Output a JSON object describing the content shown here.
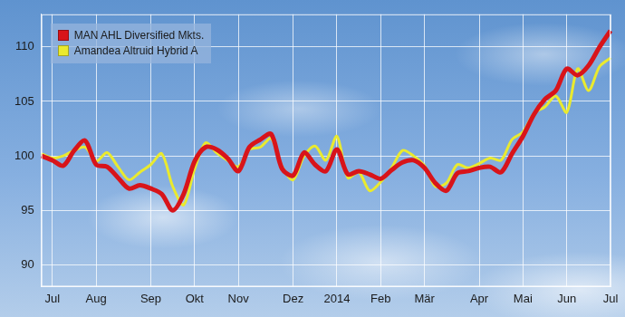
{
  "chart_data": {
    "type": "line",
    "categories": [
      null,
      "Jul",
      null,
      null,
      null,
      "Aug",
      null,
      null,
      null,
      null,
      "Sep",
      null,
      null,
      null,
      "Okt",
      null,
      null,
      null,
      "Nov",
      null,
      null,
      null,
      null,
      "Dez",
      null,
      null,
      null,
      "2014",
      null,
      null,
      null,
      "Feb",
      null,
      null,
      null,
      "Mär",
      null,
      null,
      null,
      null,
      "Apr",
      null,
      null,
      null,
      "Mai",
      null,
      null,
      null,
      "Jun",
      null,
      null,
      null,
      "Jul"
    ],
    "series": [
      {
        "name": "MAN AHL Diversified Mkts.",
        "color": "#d8141a",
        "values": [
          100.0,
          99.6,
          99.1,
          100.5,
          101.4,
          99.2,
          99.0,
          98.0,
          97.0,
          97.3,
          97.0,
          96.5,
          95.0,
          96.5,
          99.5,
          100.8,
          100.6,
          99.8,
          98.6,
          100.8,
          101.5,
          102.0,
          98.8,
          98.2,
          100.3,
          99.2,
          98.6,
          100.6,
          98.3,
          98.6,
          98.3,
          97.9,
          98.7,
          99.4,
          99.6,
          98.9,
          97.5,
          96.8,
          98.4,
          98.6,
          98.9,
          99.0,
          98.5,
          100.2,
          101.8,
          103.8,
          105.2,
          106.0,
          108.0,
          107.4,
          108.3,
          110.0,
          111.5
        ]
      },
      {
        "name": "Amandea Altruid Hybrid A",
        "color": "#eaea2e",
        "values": [
          100.2,
          99.8,
          100.0,
          100.5,
          100.8,
          99.5,
          100.3,
          99.0,
          97.8,
          98.5,
          99.2,
          100.2,
          97.2,
          95.5,
          98.8,
          101.2,
          100.3,
          99.6,
          99.0,
          100.6,
          100.8,
          101.6,
          99.0,
          97.8,
          100.0,
          100.9,
          99.6,
          101.8,
          98.0,
          98.5,
          96.8,
          97.6,
          98.9,
          100.5,
          100.0,
          99.1,
          97.2,
          97.5,
          99.2,
          98.9,
          99.3,
          99.8,
          99.6,
          101.5,
          102.2,
          103.9,
          104.5,
          105.5,
          104.0,
          108.0,
          106.0,
          108.2,
          109.0
        ]
      }
    ],
    "ylim": [
      88,
      113
    ],
    "yticks": [
      90,
      95,
      100,
      105,
      110
    ],
    "grid": true,
    "legend": "top-left"
  }
}
